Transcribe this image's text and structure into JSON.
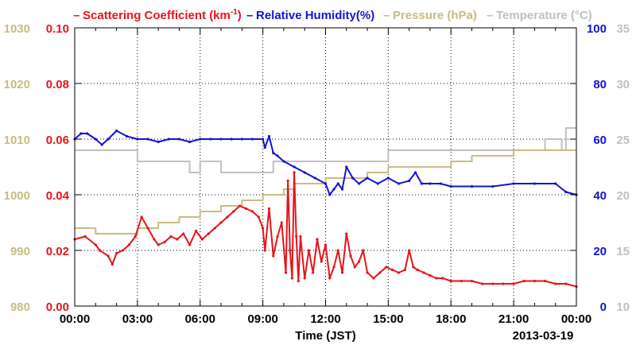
{
  "legend": {
    "scattering": "Scattering Coefficient (km",
    "scattering_sup": "-1",
    "scattering_close": ")",
    "humidity": "Relative Humidity(%)",
    "pressure": "Pressure (hPa)",
    "temperature": "Temperature (°C)",
    "dash": "–"
  },
  "colors": {
    "scattering": "#e8141a",
    "humidity": "#1414d2",
    "pressure": "#c8bc82",
    "temperature": "#c0c0c0",
    "grid": "#000000"
  },
  "chart_data": {
    "type": "line",
    "xlabel": "Time (JST)",
    "date_label": "2013-03-19",
    "x_ticks": [
      "00:00",
      "03:00",
      "06:00",
      "09:00",
      "12:00",
      "15:00",
      "18:00",
      "21:00",
      "00:00"
    ],
    "xlim_hours": [
      0,
      24
    ],
    "grid": true,
    "axes": {
      "scattering": {
        "side": "left-inner",
        "ylim": [
          0,
          0.1
        ],
        "ticks": [
          "0.00",
          "0.02",
          "0.04",
          "0.06",
          "0.08",
          "0.10"
        ]
      },
      "pressure": {
        "side": "left-outer",
        "ylim": [
          980,
          1030
        ],
        "ticks": [
          "980",
          "990",
          "1000",
          "1010",
          "1020",
          "1030"
        ]
      },
      "humidity": {
        "side": "right-inner",
        "ylim": [
          0,
          100
        ],
        "ticks": [
          "0",
          "20",
          "40",
          "60",
          "80",
          "100"
        ]
      },
      "temperature": {
        "side": "right-outer",
        "ylim": [
          10,
          35
        ],
        "ticks": [
          "10",
          "15",
          "20",
          "25",
          "30",
          "35"
        ]
      }
    },
    "series": [
      {
        "name": "Scattering Coefficient",
        "axis": "scattering",
        "x": [
          0,
          0.5,
          1,
          1.2,
          1.6,
          1.8,
          2,
          2.3,
          2.6,
          2.9,
          3.2,
          3.5,
          3.8,
          4,
          4.3,
          4.6,
          4.9,
          5.2,
          5.5,
          5.8,
          6.1,
          6.4,
          6.7,
          7,
          7.3,
          7.6,
          7.9,
          8.2,
          8.5,
          8.8,
          9,
          9.1,
          9.3,
          9.5,
          9.7,
          9.9,
          10.1,
          10.2,
          10.3,
          10.4,
          10.5,
          10.6,
          10.7,
          10.8,
          11,
          11.2,
          11.4,
          11.6,
          11.8,
          12,
          12.2,
          12.4,
          12.6,
          12.8,
          13,
          13.2,
          13.4,
          13.6,
          13.8,
          14,
          14.3,
          14.6,
          14.9,
          15.2,
          15.5,
          15.8,
          16,
          16.2,
          16.4,
          16.7,
          17,
          17.3,
          17.6,
          18,
          18.5,
          19,
          19.5,
          20,
          20.5,
          21,
          21.5,
          22,
          22.5,
          23,
          23.5,
          24
        ],
        "values": [
          0.024,
          0.025,
          0.022,
          0.02,
          0.018,
          0.015,
          0.019,
          0.02,
          0.022,
          0.025,
          0.032,
          0.028,
          0.024,
          0.022,
          0.023,
          0.025,
          0.024,
          0.026,
          0.022,
          0.027,
          0.024,
          0.026,
          0.028,
          0.03,
          0.032,
          0.034,
          0.036,
          0.035,
          0.034,
          0.032,
          0.028,
          0.02,
          0.035,
          0.018,
          0.025,
          0.03,
          0.012,
          0.045,
          0.02,
          0.01,
          0.048,
          0.025,
          0.009,
          0.025,
          0.01,
          0.02,
          0.012,
          0.024,
          0.016,
          0.022,
          0.01,
          0.014,
          0.02,
          0.012,
          0.026,
          0.018,
          0.014,
          0.016,
          0.02,
          0.012,
          0.01,
          0.012,
          0.014,
          0.013,
          0.012,
          0.013,
          0.02,
          0.014,
          0.013,
          0.012,
          0.011,
          0.01,
          0.01,
          0.009,
          0.009,
          0.009,
          0.008,
          0.008,
          0.008,
          0.008,
          0.009,
          0.009,
          0.009,
          0.008,
          0.008,
          0.007
        ]
      },
      {
        "name": "Relative Humidity",
        "axis": "humidity",
        "x": [
          0,
          0.3,
          0.6,
          1,
          1.3,
          1.6,
          2,
          2.5,
          3,
          3.5,
          4,
          4.5,
          5,
          5.5,
          6,
          6.5,
          7,
          7.5,
          8,
          8.5,
          9,
          9.1,
          9.3,
          9.5,
          9.7,
          10,
          10.5,
          11,
          11.5,
          12,
          12.2,
          12.4,
          12.6,
          12.8,
          13,
          13.3,
          13.6,
          14,
          14.5,
          15,
          15.5,
          16,
          16.3,
          16.6,
          17,
          17.5,
          18,
          19,
          20,
          21,
          22,
          23,
          23.5,
          24
        ],
        "values": [
          60,
          62,
          62,
          60,
          58,
          60,
          63,
          61,
          60,
          60,
          59,
          60,
          60,
          59,
          60,
          60,
          60,
          60,
          60,
          60,
          60,
          57,
          61,
          55,
          54,
          52,
          50,
          48,
          46,
          44,
          40,
          42,
          44,
          42,
          50,
          46,
          44,
          46,
          44,
          46,
          44,
          45,
          48,
          44,
          44,
          44,
          43,
          43,
          43,
          44,
          44,
          44,
          41,
          40
        ]
      },
      {
        "name": "Pressure",
        "axis": "pressure",
        "x": [
          0,
          1,
          2,
          3,
          4,
          5,
          6,
          7,
          8,
          9,
          10,
          10.5,
          11,
          12,
          13,
          14,
          15,
          16,
          17,
          18,
          19,
          20,
          21,
          22,
          23,
          24
        ],
        "values": [
          994,
          993,
          993,
          994,
          995,
          996,
          997,
          998,
          999,
          1000,
          1001,
          1002,
          1002,
          1003,
          1003,
          1004,
          1005,
          1005,
          1005,
          1006,
          1007,
          1007,
          1008,
          1008,
          1008,
          1008
        ]
      },
      {
        "name": "Temperature",
        "axis": "temperature",
        "x": [
          0,
          1,
          2,
          2.5,
          3,
          4,
          5,
          5.5,
          6,
          6.5,
          7,
          7.5,
          8,
          8.5,
          9,
          9.5,
          10,
          11,
          12,
          13,
          14,
          14.5,
          15,
          16,
          17,
          18,
          19,
          20,
          21,
          22,
          22.5,
          23,
          23.3,
          23.5,
          24
        ],
        "values": [
          24,
          24,
          24,
          24,
          23,
          23,
          23,
          22,
          23,
          23,
          22,
          22,
          22,
          22,
          22,
          23,
          23,
          23,
          23,
          23,
          23,
          23,
          24,
          24,
          24,
          24,
          24,
          24,
          24,
          24,
          25,
          25,
          24,
          26,
          26
        ]
      }
    ]
  }
}
